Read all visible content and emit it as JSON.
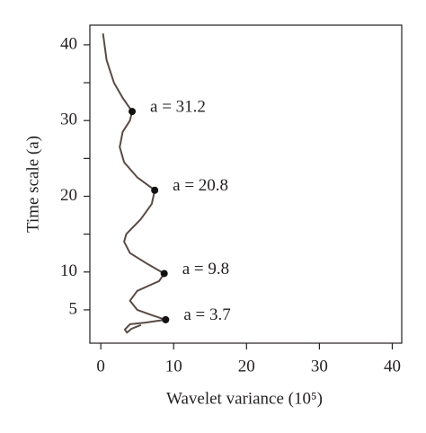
{
  "chart_data": {
    "type": "line",
    "x_label": "Wavelet variance (10⁵)",
    "y_label": "Time scale (a)",
    "xlim": [
      -1.5,
      41.3
    ],
    "xticks": [
      0,
      10,
      20,
      30,
      40
    ],
    "ylim": [
      0.6,
      42.6
    ],
    "yticks": [
      5,
      10,
      20,
      30,
      40
    ],
    "yminorticks": [
      15,
      25,
      35
    ],
    "series": [
      {
        "color": "#5a4a45",
        "x": [
          0.3,
          0.8,
          1.8,
          3,
          4.3,
          4,
          3,
          2.6,
          3.2,
          5,
          7.4,
          7,
          5.5,
          3.5,
          3.2,
          4,
          6.5,
          8.7,
          8,
          5,
          4,
          5,
          7,
          8.9,
          6,
          4,
          3.3,
          3.6,
          4.2,
          5.5
        ],
        "values": [
          41.5,
          38,
          35,
          33,
          31.2,
          30,
          28.5,
          26.5,
          24.5,
          22.5,
          20.8,
          19,
          17,
          15,
          14,
          12.5,
          11,
          9.8,
          8.8,
          7.5,
          6.2,
          5,
          4.3,
          3.7,
          3.3,
          3.1,
          2.4,
          2.0,
          2.5,
          3.0
        ]
      }
    ],
    "points": {
      "color": "#111111",
      "x": [
        4.3,
        7.4,
        8.7,
        8.9
      ],
      "values": [
        31.2,
        20.8,
        9.8,
        3.7
      ],
      "labels": [
        "a = 31.2",
        "a = 20.8",
        "a = 9.8",
        "a = 3.7"
      ]
    }
  }
}
